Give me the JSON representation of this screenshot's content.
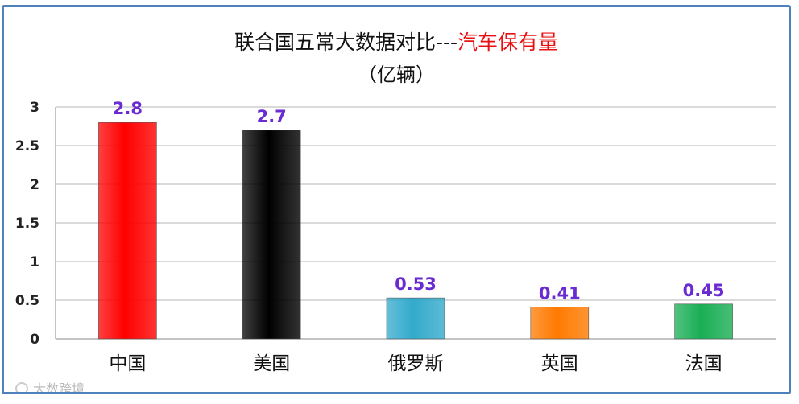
{
  "chart_data": {
    "type": "bar",
    "title_part1": "联合国五常大数据对比---",
    "title_part2": "汽车保有量",
    "subtitle": "（亿辆）",
    "categories": [
      "中国",
      "美国",
      "俄罗斯",
      "英国",
      "法国"
    ],
    "values": [
      2.8,
      2.7,
      0.53,
      0.41,
      0.45
    ],
    "data_labels": [
      "2.8",
      "2.7",
      "0.53",
      "0.41",
      "0.45"
    ],
    "y_ticks": [
      "0",
      "0.5",
      "1",
      "1.5",
      "2",
      "2.5",
      "3"
    ],
    "ylim": [
      0,
      3
    ],
    "grid": true,
    "legend": "none",
    "colors": [
      "#ff0000",
      "#000000",
      "#33aacc",
      "#ff7a00",
      "#1aae55"
    ],
    "title_colors": [
      "#111111",
      "#e81010"
    ],
    "label_color": "#6a2bd0"
  },
  "watermark": "大数跨境"
}
